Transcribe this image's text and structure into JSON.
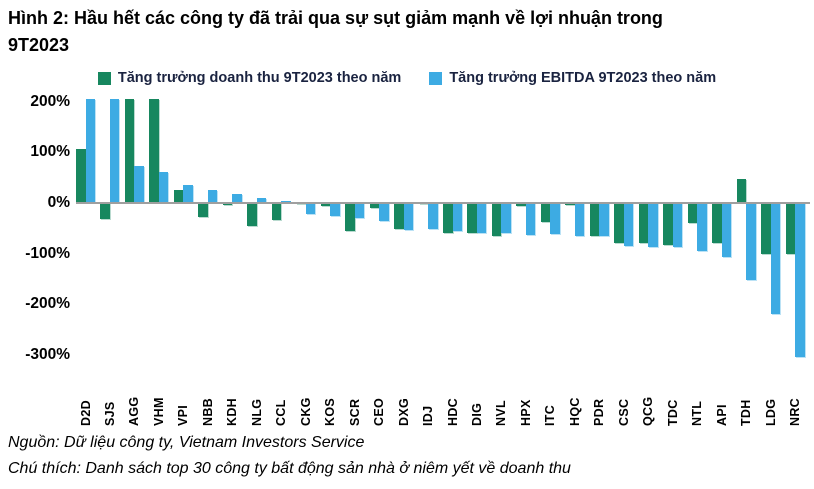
{
  "title": "Hình 2: Hầu hết các công ty đã trải qua sự sụt giảm mạnh về lợi nhuận trong 9T2023",
  "footer": {
    "source_line": "Nguồn: Dữ liệu công ty, Vietnam Investors Service",
    "note_line": "Chú thích: Danh sách top 30 công ty bất động sản nhà ở niêm yết về doanh thu"
  },
  "chart_data": {
    "type": "bar",
    "title": "Hình 2: Hầu hết các công ty đã trải qua sự sụt giảm mạnh về lợi nhuận trong 9T2023",
    "categories": [
      "D2D",
      "SJS",
      "AGG",
      "VHM",
      "VPI",
      "NBB",
      "KDH",
      "NLG",
      "CCL",
      "CKG",
      "KOS",
      "SCR",
      "CEO",
      "DXG",
      "IDJ",
      "HDC",
      "DIG",
      "NVL",
      "HPX",
      "ITC",
      "HQC",
      "PDR",
      "CSC",
      "QCG",
      "TDC",
      "NTL",
      "API",
      "TDH",
      "LDG",
      "NRC"
    ],
    "series": [
      {
        "key": "revenue",
        "name": "Tăng trưởng doanh thu 9T2023 theo năm",
        "color": "#17875f",
        "values": [
          107,
          -31,
          205,
          205,
          26,
          -28,
          -5,
          -46,
          -33,
          -3,
          -7,
          -55,
          -11,
          -51,
          -3,
          -60,
          -59,
          -66,
          -7,
          -38,
          -5,
          -65,
          -80,
          -79,
          -84,
          -39,
          -79,
          48,
          -100,
          -100
        ]
      },
      {
        "key": "ebitda",
        "name": "Tăng trưởng EBITDA 9T2023 theo năm",
        "color": "#3dabe3",
        "values": [
          205,
          205,
          72,
          61,
          36,
          26,
          18,
          9,
          4,
          -21,
          -26,
          -29,
          -36,
          -53,
          -51,
          -55,
          -59,
          -60,
          -64,
          -62,
          -65,
          -66,
          -86,
          -87,
          -88,
          -94,
          -107,
          -153,
          -220,
          -304
        ]
      }
    ],
    "unit": "%",
    "yticks": [
      {
        "value": 200,
        "label": "200%"
      },
      {
        "value": 100,
        "label": "100%"
      },
      {
        "value": 0,
        "label": "0%"
      },
      {
        "value": -100,
        "label": "-100%"
      },
      {
        "value": -200,
        "label": "-200%"
      },
      {
        "value": -300,
        "label": "-300%"
      }
    ],
    "ylim": [
      -310,
      205
    ],
    "xlabel": "",
    "ylabel": "",
    "grid": false,
    "legend_position": "top",
    "note": "Bars for D2D EBITDA, SJS EBITDA, AGG revenue and VHM revenue exceed +200% and are clipped at the top edge of the plot area"
  }
}
